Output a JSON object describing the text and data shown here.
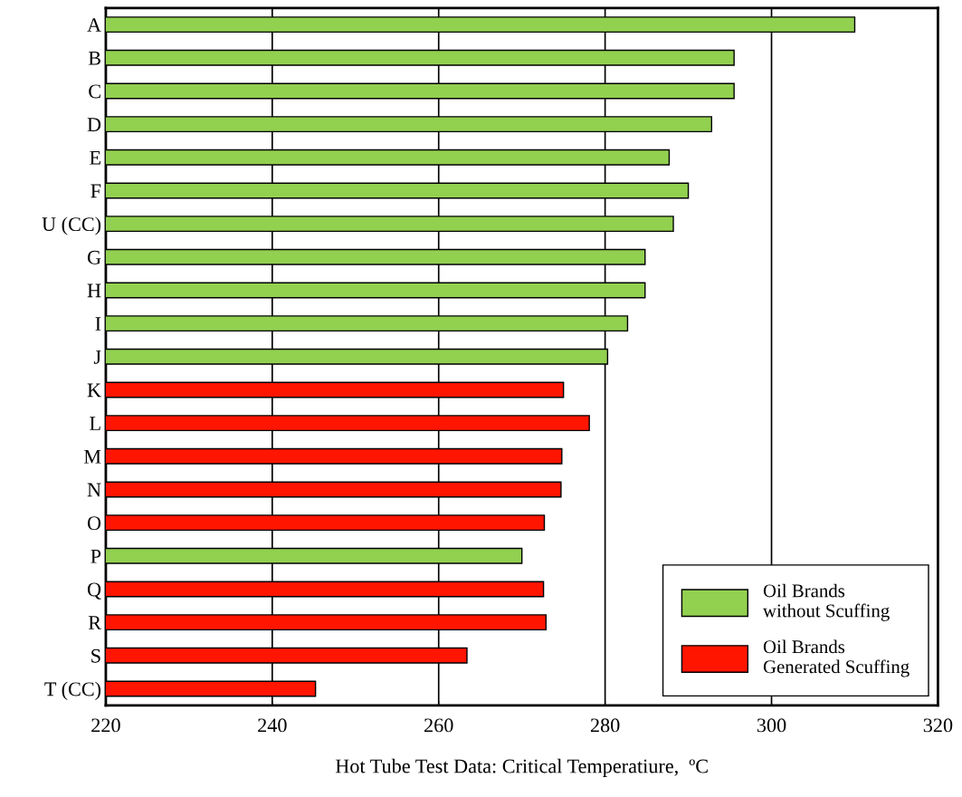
{
  "chart_data": {
    "type": "bar",
    "orientation": "horizontal",
    "xlabel": "Hot Tube Test Data: Critical Temperatiure,  ºC",
    "categories": [
      "A",
      "B",
      "C",
      "D",
      "E",
      "F",
      "U (CC)",
      "G",
      "H",
      "I",
      "J",
      "K",
      "L",
      "M",
      "N",
      "O",
      "P",
      "Q",
      "R",
      "S",
      "T (CC)"
    ],
    "series": [
      {
        "name": "Oil Brands\nwithout Scuffing",
        "color": "#92d050",
        "values": [
          310,
          295.5,
          295.5,
          292.8,
          287.7,
          290,
          288.2,
          284.8,
          284.8,
          282.7,
          280.3,
          null,
          null,
          null,
          null,
          null,
          270,
          null,
          null,
          null,
          null
        ]
      },
      {
        "name": "Oil Brands\nGenerated Scuffing",
        "color": "#ff1500",
        "values": [
          null,
          null,
          null,
          null,
          null,
          null,
          null,
          null,
          null,
          null,
          null,
          275,
          278.1,
          274.8,
          274.7,
          272.7,
          null,
          272.6,
          272.9,
          263.4,
          245.2
        ]
      }
    ],
    "xlim": [
      220,
      320
    ],
    "xticks": [
      220,
      240,
      260,
      280,
      300,
      320
    ],
    "grid": "x",
    "legend": "bottom right"
  }
}
